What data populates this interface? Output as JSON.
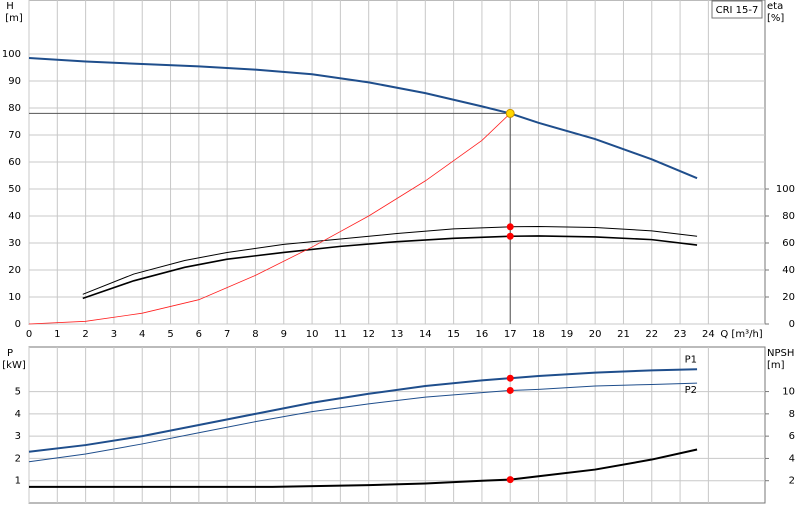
{
  "chart_data": [
    {
      "type": "line",
      "label": "CRI 15-7",
      "ylabel": "H",
      "yunit": "[m]",
      "y2label": "eta",
      "y2unit": "[%]",
      "xlabel": "Q [m³/h]",
      "xlim": [
        0,
        26
      ],
      "xticks": [
        0,
        1,
        2,
        3,
        4,
        5,
        6,
        7,
        8,
        9,
        10,
        11,
        12,
        13,
        14,
        15,
        16,
        17,
        18,
        19,
        20,
        21,
        22,
        23,
        24
      ],
      "show_xtick_labels": true,
      "ylim": [
        0,
        120
      ],
      "yticks": [
        0,
        10,
        20,
        30,
        40,
        50,
        60,
        70,
        80,
        90,
        100
      ],
      "y2lim": [
        0,
        240
      ],
      "y2ticks": [
        0,
        20,
        40,
        60,
        80,
        100
      ],
      "grid": true,
      "series": [
        {
          "name": "H",
          "color": "#1f4e8c",
          "width": 2,
          "axis": "y",
          "x": [
            0,
            2,
            4,
            6,
            8,
            10,
            12,
            14,
            16,
            17,
            18,
            20,
            22,
            23.6
          ],
          "values": [
            98.5,
            97.2,
            96.3,
            95.4,
            94.2,
            92.5,
            89.5,
            85.5,
            80.6,
            78,
            74.5,
            68.5,
            61,
            54
          ]
        },
        {
          "name": "eta",
          "color": "#000000",
          "width": 1,
          "axis": "y2",
          "x": [
            1.9,
            3.7,
            5.5,
            7,
            9,
            11,
            13,
            15,
            17,
            18,
            20,
            22,
            23.6
          ],
          "values": [
            22,
            37,
            47,
            53,
            59,
            63,
            67,
            70.5,
            72,
            72.2,
            71.5,
            69,
            65
          ]
        },
        {
          "name": "eta",
          "color": "#000000",
          "width": 1.6,
          "axis": "y2",
          "x": [
            1.9,
            3.7,
            5.5,
            7,
            9,
            11,
            13,
            15,
            17,
            18,
            20,
            22,
            23.6
          ],
          "values": [
            19,
            32,
            42,
            48,
            53,
            57.5,
            61,
            63.5,
            65,
            65.2,
            64.5,
            62.5,
            58.5
          ]
        },
        {
          "name": "system",
          "color": "#ff2020",
          "width": 0.8,
          "axis": "y",
          "x": [
            0,
            2,
            4,
            6,
            8,
            10,
            12,
            14,
            16,
            17
          ],
          "values": [
            0,
            1,
            4,
            9,
            18,
            28.5,
            40,
            53,
            68,
            78
          ]
        }
      ],
      "duty_point": {
        "x": 17,
        "y": 78,
        "color": "#ffd700"
      },
      "markers": [
        {
          "x": 17,
          "y": 72,
          "axis": "y2",
          "color": "#ff0000"
        },
        {
          "x": 17,
          "y": 65,
          "axis": "y2",
          "color": "#ff0000"
        }
      ]
    },
    {
      "type": "line",
      "ylabel": "P",
      "yunit": "[kW]",
      "y2label": "NPSH",
      "y2unit": "[m]",
      "xlim": [
        0,
        26
      ],
      "xticks": [
        0,
        1,
        2,
        3,
        4,
        5,
        6,
        7,
        8,
        9,
        10,
        11,
        12,
        13,
        14,
        15,
        16,
        17,
        18,
        19,
        20,
        21,
        22,
        23,
        24
      ],
      "show_xtick_labels": false,
      "ylim": [
        0,
        7
      ],
      "yticks": [
        1,
        2,
        3,
        4,
        5
      ],
      "y2lim": [
        0,
        14
      ],
      "y2ticks": [
        2,
        4,
        6,
        8,
        10
      ],
      "grid": true,
      "series": [
        {
          "name": "P1",
          "color": "#1f4e8c",
          "width": 2,
          "axis": "y",
          "show_name": true,
          "x": [
            0,
            2,
            4,
            6,
            8,
            10,
            12,
            14,
            16,
            17,
            18,
            20,
            22,
            23.6
          ],
          "values": [
            2.3,
            2.6,
            3.0,
            3.5,
            4.0,
            4.5,
            4.9,
            5.25,
            5.5,
            5.6,
            5.7,
            5.85,
            5.95,
            6.0
          ]
        },
        {
          "name": "P2",
          "color": "#1f4e8c",
          "width": 1,
          "axis": "y",
          "show_name": true,
          "x": [
            0,
            2,
            4,
            6,
            8,
            10,
            12,
            14,
            16,
            17,
            18,
            20,
            22,
            23.6
          ],
          "values": [
            1.85,
            2.2,
            2.65,
            3.15,
            3.65,
            4.1,
            4.45,
            4.75,
            4.95,
            5.05,
            5.1,
            5.25,
            5.32,
            5.38
          ]
        },
        {
          "name": "NPSH",
          "color": "#000000",
          "width": 2,
          "axis": "y2",
          "show_name": false,
          "x": [
            0,
            8.6,
            12,
            14,
            16,
            17,
            18,
            20,
            22,
            23.6
          ],
          "values": [
            1.45,
            1.45,
            1.6,
            1.75,
            2.0,
            2.1,
            2.4,
            3.0,
            3.9,
            4.8
          ]
        }
      ],
      "markers": [
        {
          "x": 17,
          "y": 5.6,
          "axis": "y",
          "color": "#ff0000"
        },
        {
          "x": 17,
          "y": 5.05,
          "axis": "y",
          "color": "#ff0000"
        },
        {
          "x": 17,
          "y": 2.1,
          "axis": "y2",
          "color": "#ff0000"
        }
      ]
    }
  ]
}
